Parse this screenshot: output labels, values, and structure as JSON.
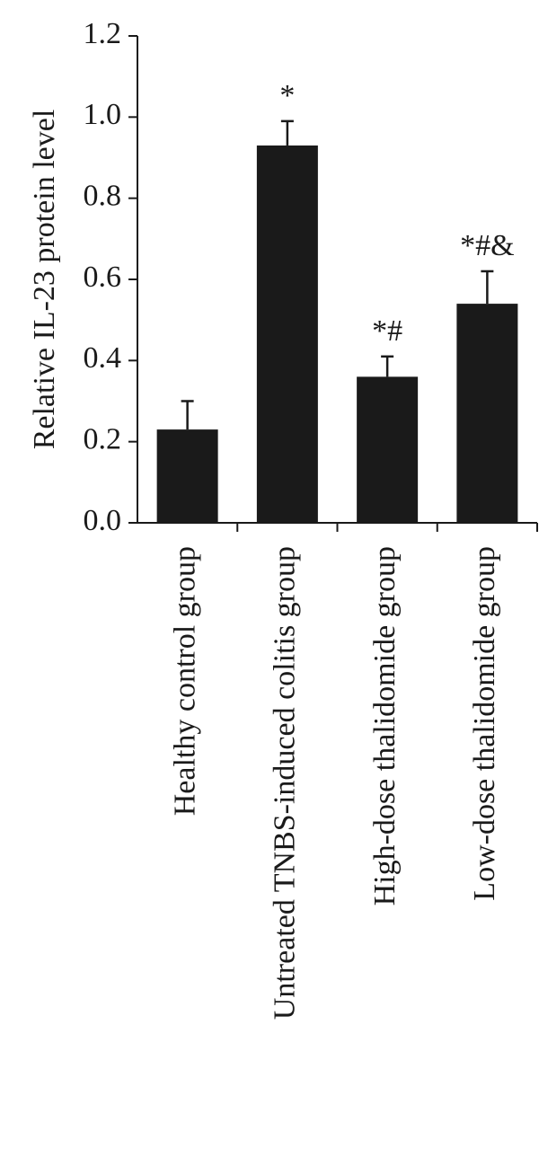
{
  "chart_data": {
    "type": "bar",
    "title": "",
    "xlabel": "",
    "ylabel": "Relative IL-23 protein level",
    "ylim": [
      0,
      1.2
    ],
    "yticks": [
      "0.0",
      "0.2",
      "0.4",
      "0.6",
      "0.8",
      "1.0",
      "1.2"
    ],
    "grid": false,
    "categories": [
      "Healthy control group",
      "Untreated TNBS-induced colitis group",
      "High-dose thalidomide group",
      "Low-dose thalidomide group"
    ],
    "values": [
      0.23,
      0.93,
      0.36,
      0.54
    ],
    "errors": [
      0.07,
      0.06,
      0.05,
      0.08
    ],
    "annotations": [
      "",
      "*",
      "*#",
      "*#&"
    ],
    "bar_color": "#1a1a1a"
  }
}
